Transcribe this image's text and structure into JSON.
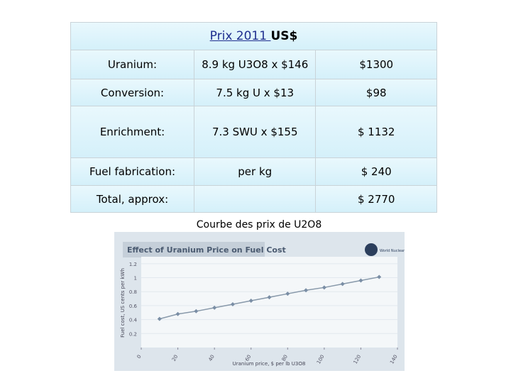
{
  "table": {
    "title_underlined": "Prix 2011 ",
    "title_rest": "US$",
    "rows": [
      [
        "Uranium:",
        "8.9 kg U3O8 x $146",
        "$1300"
      ],
      [
        "Conversion:",
        "7.5 kg U x $13",
        "$98"
      ],
      [
        "Enrichment:",
        "7.3 SWU x $155",
        "$ 1132"
      ],
      [
        "Fuel fabrication:",
        "per kg",
        "$ 240"
      ],
      [
        "Total, approx:",
        "",
        "$ 2770"
      ]
    ]
  },
  "caption": "Courbe des prix de U2O8",
  "figure": {
    "type": "line",
    "title": "Effect of Uranium Price on Fuel Cost",
    "logo_text": "World Nuclear Association",
    "x_label": "Uranium price, $ per lb U3O8",
    "y_label": "Fuel cost, US cents per kWh",
    "x": [
      10,
      20,
      30,
      40,
      50,
      60,
      70,
      80,
      90,
      100,
      110,
      120,
      130
    ],
    "values": [
      0.41,
      0.48,
      0.52,
      0.57,
      0.62,
      0.67,
      0.72,
      0.77,
      0.82,
      0.86,
      0.91,
      0.96,
      1.01
    ],
    "color": "#8899aa",
    "xlim": [
      0,
      140
    ],
    "ylim": [
      0,
      1.3
    ],
    "xticks": [
      0,
      20,
      40,
      60,
      80,
      100,
      120,
      140
    ],
    "yticks": [
      0.2,
      0.4,
      0.6,
      0.8,
      1,
      1.2
    ]
  }
}
